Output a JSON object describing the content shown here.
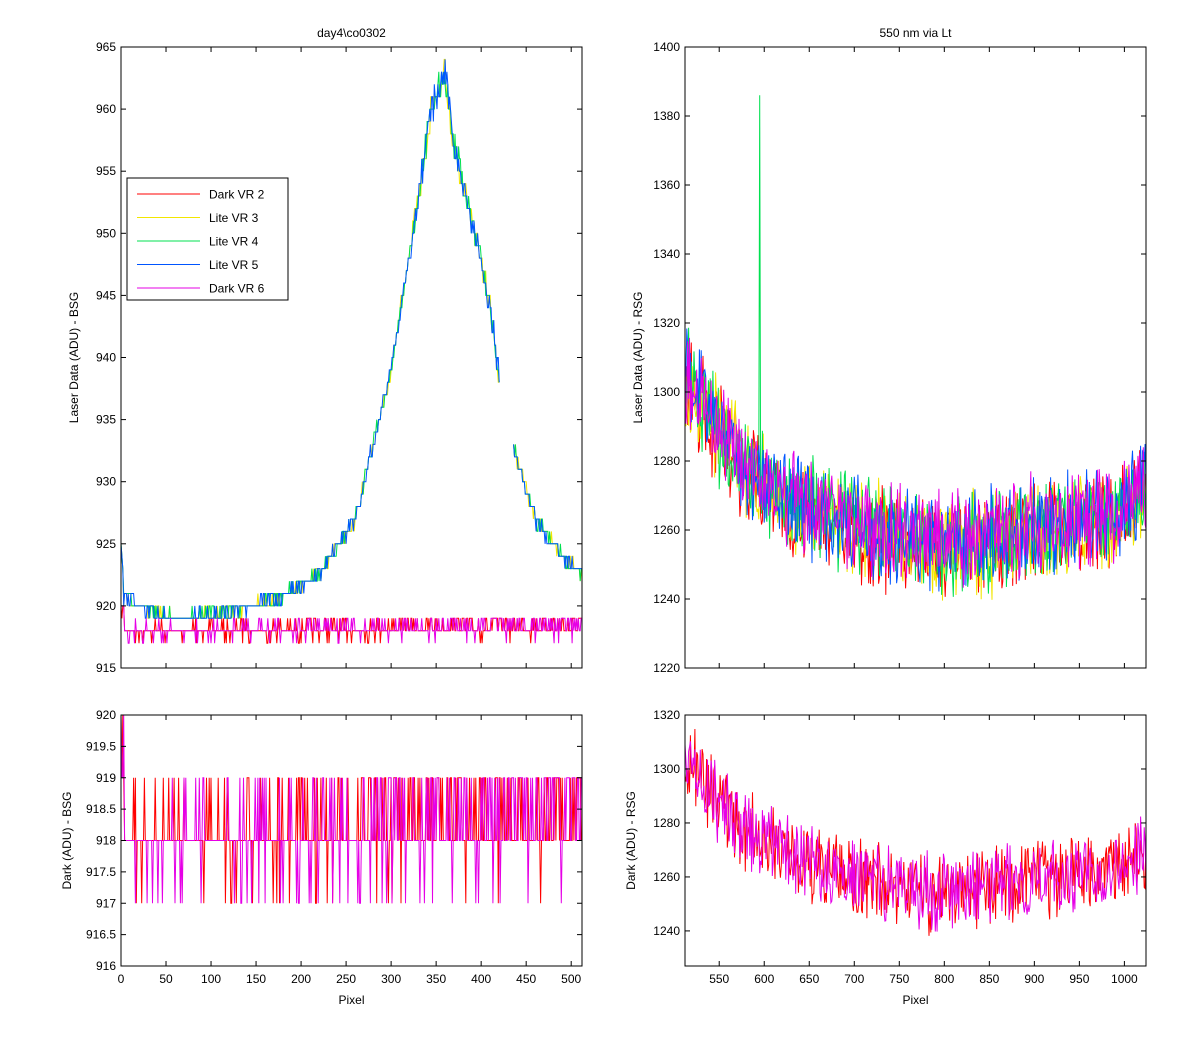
{
  "figure": {
    "legend": {
      "entries": [
        {
          "label": "Dark VR 2",
          "color": "#ff0000"
        },
        {
          "label": "Lite VR 3",
          "color": "#f2e600"
        },
        {
          "label": "Lite VR 4",
          "color": "#00e050"
        },
        {
          "label": "Lite VR 5",
          "color": "#0055ff"
        },
        {
          "label": "Dark VR 6",
          "color": "#e600e6"
        }
      ]
    }
  },
  "chart_data": [
    {
      "id": "top-left",
      "type": "line",
      "title": "day4\\co0302",
      "xlabel": "",
      "ylabel": "Laser Data (ADU) - BSG",
      "xlim": [
        0,
        512
      ],
      "ylim": [
        915,
        965
      ],
      "xticks": [
        0,
        50,
        100,
        150,
        200,
        250,
        300,
        350,
        400,
        450,
        500
      ],
      "xtick_labels": [],
      "yticks": [
        915,
        920,
        925,
        930,
        935,
        940,
        945,
        950,
        955,
        960,
        965
      ],
      "ytick_labels": [
        "915",
        "920",
        "925",
        "930",
        "935",
        "940",
        "945",
        "950",
        "955",
        "960",
        "965"
      ],
      "legend_position": "upper-left",
      "series": [
        {
          "name": "Dark VR 2",
          "color": "#ff0000",
          "kind": "dark-bsg",
          "x": [
            0,
            512
          ],
          "y": [
            918,
            918
          ]
        },
        {
          "name": "Lite VR 3",
          "color": "#f2e600",
          "kind": "lite-bsg",
          "x": [
            0,
            20,
            60,
            120,
            170,
            220,
            260,
            300,
            330,
            345,
            360,
            370,
            390,
            410,
            420,
            435,
            460,
            490,
            512
          ],
          "y": [
            921,
            920,
            919,
            919.5,
            920.5,
            922.5,
            927,
            939,
            953,
            960,
            963,
            957,
            951,
            944,
            938,
            933,
            927,
            924,
            922.5
          ]
        },
        {
          "name": "Lite VR 4",
          "color": "#00e050",
          "kind": "lite-bsg",
          "x": [
            0,
            20,
            60,
            120,
            170,
            220,
            260,
            300,
            330,
            345,
            360,
            370,
            390,
            410,
            420,
            435,
            460,
            490,
            512
          ],
          "y": [
            921,
            920,
            919,
            919.5,
            920.5,
            922.5,
            927,
            939,
            953,
            960,
            963,
            957,
            951,
            944,
            938,
            933,
            927,
            924,
            922.5
          ]
        },
        {
          "name": "Lite VR 5",
          "color": "#0055ff",
          "kind": "lite-bsg",
          "x": [
            0,
            20,
            60,
            120,
            170,
            220,
            260,
            300,
            330,
            345,
            360,
            370,
            390,
            410,
            420,
            435,
            460,
            490,
            512
          ],
          "y": [
            921,
            920,
            919,
            919.5,
            920.5,
            922.5,
            927,
            939,
            953,
            960,
            963,
            957,
            951,
            944,
            938,
            933,
            927,
            924,
            922.5
          ]
        },
        {
          "name": "Dark VR 6",
          "color": "#e600e6",
          "kind": "dark-bsg",
          "x": [
            0,
            512
          ],
          "y": [
            918,
            918
          ]
        }
      ]
    },
    {
      "id": "top-right",
      "type": "line",
      "title": "550 nm via Lt",
      "xlabel": "",
      "ylabel": "Laser Data (ADU) - RSG",
      "xlim": [
        512,
        1024
      ],
      "ylim": [
        1220,
        1400
      ],
      "xticks": [
        550,
        600,
        650,
        700,
        750,
        800,
        850,
        900,
        950,
        1000
      ],
      "xtick_labels": [],
      "yticks": [
        1220,
        1240,
        1260,
        1280,
        1300,
        1320,
        1340,
        1360,
        1380,
        1400
      ],
      "ytick_labels": [
        "1220",
        "1240",
        "1260",
        "1280",
        "1300",
        "1320",
        "1340",
        "1360",
        "1380",
        "1400"
      ],
      "series": [
        {
          "name": "Dark VR 2",
          "color": "#ff0000",
          "kind": "rsg",
          "x": [
            512,
            540,
            580,
            620,
            680,
            740,
            800,
            850,
            900,
            950,
            990,
            1024
          ],
          "y": [
            1305,
            1292,
            1278,
            1270,
            1263,
            1258,
            1255,
            1257,
            1260,
            1262,
            1265,
            1272
          ]
        },
        {
          "name": "Lite VR 3",
          "color": "#f2e600",
          "kind": "rsg",
          "x": [
            512,
            540,
            580,
            620,
            680,
            740,
            800,
            850,
            900,
            950,
            990,
            1024
          ],
          "y": [
            1305,
            1292,
            1278,
            1270,
            1263,
            1258,
            1255,
            1257,
            1260,
            1262,
            1265,
            1272
          ]
        },
        {
          "name": "Lite VR 4",
          "color": "#00e050",
          "kind": "rsg",
          "spike": {
            "x": 595,
            "y": 1386
          },
          "x": [
            512,
            540,
            580,
            620,
            680,
            740,
            800,
            850,
            900,
            950,
            990,
            1024
          ],
          "y": [
            1305,
            1292,
            1278,
            1270,
            1263,
            1258,
            1255,
            1257,
            1260,
            1262,
            1265,
            1272
          ]
        },
        {
          "name": "Lite VR 5",
          "color": "#0055ff",
          "kind": "rsg",
          "x": [
            512,
            540,
            580,
            620,
            680,
            740,
            800,
            850,
            900,
            950,
            990,
            1024
          ],
          "y": [
            1305,
            1292,
            1278,
            1270,
            1263,
            1258,
            1255,
            1257,
            1260,
            1262,
            1265,
            1272
          ]
        },
        {
          "name": "Dark VR 6",
          "color": "#e600e6",
          "kind": "rsg",
          "x": [
            512,
            540,
            580,
            620,
            680,
            740,
            800,
            850,
            900,
            950,
            990,
            1024
          ],
          "y": [
            1305,
            1292,
            1278,
            1270,
            1263,
            1258,
            1255,
            1257,
            1260,
            1262,
            1265,
            1272
          ]
        }
      ]
    },
    {
      "id": "bottom-left",
      "type": "line",
      "title": "",
      "xlabel": "Pixel",
      "ylabel": "Dark (ADU) - BSG",
      "xlim": [
        0,
        512
      ],
      "ylim": [
        916,
        920
      ],
      "xticks": [
        0,
        50,
        100,
        150,
        200,
        250,
        300,
        350,
        400,
        450,
        500
      ],
      "xtick_labels": [
        "0",
        "50",
        "100",
        "150",
        "200",
        "250",
        "300",
        "350",
        "400",
        "450",
        "500"
      ],
      "yticks": [
        916,
        916.5,
        917,
        917.5,
        918,
        918.5,
        919,
        919.5,
        920
      ],
      "ytick_labels": [
        "916",
        "916.5",
        "917",
        "917.5",
        "918",
        "918.5",
        "919",
        "919.5",
        "920"
      ],
      "series": [
        {
          "name": "Dark VR 2",
          "color": "#ff0000",
          "kind": "dark-bsg",
          "x": [
            0,
            512
          ],
          "y": [
            918,
            918
          ]
        },
        {
          "name": "Dark VR 6",
          "color": "#e600e6",
          "kind": "dark-bsg",
          "x": [
            0,
            512
          ],
          "y": [
            918,
            918
          ]
        }
      ]
    },
    {
      "id": "bottom-right",
      "type": "line",
      "title": "",
      "xlabel": "Pixel",
      "ylabel": "Dark (ADU) - RSG",
      "xlim": [
        512,
        1024
      ],
      "ylim": [
        1227,
        1320
      ],
      "xticks": [
        550,
        600,
        650,
        700,
        750,
        800,
        850,
        900,
        950,
        1000
      ],
      "xtick_labels": [
        "550",
        "600",
        "650",
        "700",
        "750",
        "800",
        "850",
        "900",
        "950",
        "1000"
      ],
      "yticks": [
        1240,
        1260,
        1280,
        1300,
        1320
      ],
      "ytick_labels": [
        "1240",
        "1260",
        "1280",
        "1300",
        "1320"
      ],
      "series": [
        {
          "name": "Dark VR 2",
          "color": "#ff0000",
          "kind": "rsg",
          "x": [
            512,
            540,
            580,
            620,
            680,
            740,
            800,
            850,
            900,
            950,
            990,
            1024
          ],
          "y": [
            1305,
            1292,
            1278,
            1270,
            1263,
            1258,
            1255,
            1257,
            1260,
            1262,
            1265,
            1272
          ]
        },
        {
          "name": "Dark VR 6",
          "color": "#e600e6",
          "kind": "rsg",
          "x": [
            512,
            540,
            580,
            620,
            680,
            740,
            800,
            850,
            900,
            950,
            990,
            1024
          ],
          "y": [
            1305,
            1292,
            1278,
            1270,
            1263,
            1258,
            1255,
            1257,
            1260,
            1262,
            1265,
            1272
          ]
        }
      ]
    }
  ]
}
